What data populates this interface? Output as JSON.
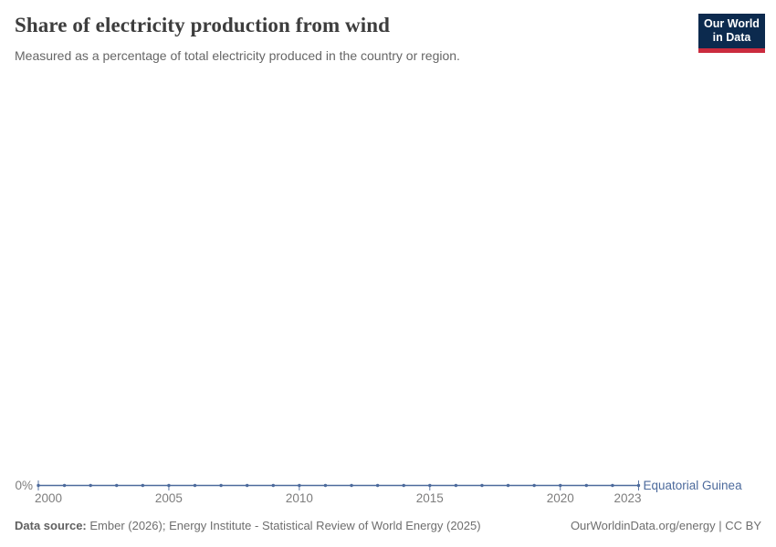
{
  "header": {
    "title": "Share of electricity production from wind",
    "subtitle": "Measured as a percentage of total electricity produced in the country or region."
  },
  "logo": {
    "line1": "Our World",
    "line2": "in Data",
    "bg_color": "#0c2a4e",
    "accent_color": "#cb2b3e"
  },
  "chart_data": {
    "type": "line",
    "title": "Share of electricity production from wind",
    "xlabel": "",
    "ylabel": "",
    "grid": false,
    "legend_position": "end-of-line-label",
    "ylim": [
      0,
      100
    ],
    "y_tick_labels": [
      "0%"
    ],
    "x_ticks": [
      2000,
      2005,
      2010,
      2015,
      2020,
      2023
    ],
    "x": [
      2000,
      2001,
      2002,
      2003,
      2004,
      2005,
      2006,
      2007,
      2008,
      2009,
      2010,
      2011,
      2012,
      2013,
      2014,
      2015,
      2016,
      2017,
      2018,
      2019,
      2020,
      2021,
      2022,
      2023
    ],
    "series": [
      {
        "name": "Equatorial Guinea",
        "color": "#4c6a9c",
        "values": [
          0,
          0,
          0,
          0,
          0,
          0,
          0,
          0,
          0,
          0,
          0,
          0,
          0,
          0,
          0,
          0,
          0,
          0,
          0,
          0,
          0,
          0,
          0,
          0
        ]
      }
    ],
    "axis_text_color": "#7d7d7d"
  },
  "footer": {
    "datasource_label": "Data source:",
    "datasource_text": " Ember (2026); Energy Institute - Statistical Review of World Energy (2025)",
    "right_text": "OurWorldinData.org/energy | CC BY"
  }
}
